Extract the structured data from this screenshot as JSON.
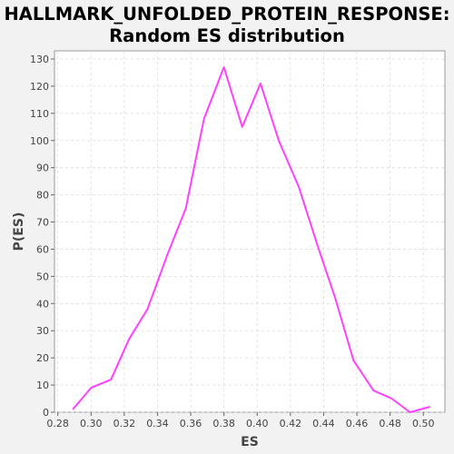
{
  "chart_data": {
    "type": "line",
    "title_lines": [
      "HALLMARK_UNFOLDED_PROTEIN_RESPONSE:",
      "Random ES distribution"
    ],
    "xlabel": "ES",
    "ylabel": "P(ES)",
    "xlim": [
      0.278,
      0.513
    ],
    "ylim": [
      0,
      133
    ],
    "xticks": [
      0.28,
      0.3,
      0.32,
      0.34,
      0.36,
      0.38,
      0.4,
      0.42,
      0.44,
      0.46,
      0.48,
      0.5
    ],
    "yticks": [
      0,
      10,
      20,
      30,
      40,
      50,
      60,
      70,
      80,
      90,
      100,
      110,
      120,
      130
    ],
    "grid": true,
    "line_color": "#ff40ff",
    "series": [
      {
        "x": [
          0.289,
          0.3,
          0.312,
          0.323,
          0.334,
          0.346,
          0.357,
          0.368,
          0.38,
          0.391,
          0.402,
          0.413,
          0.425,
          0.436,
          0.447,
          0.458,
          0.47,
          0.481,
          0.492,
          0.504
        ],
        "y": [
          1,
          9,
          12,
          27,
          38,
          58,
          75,
          108,
          127,
          105,
          121,
          100,
          83,
          62,
          42,
          19,
          8,
          5,
          0,
          2
        ]
      }
    ]
  }
}
